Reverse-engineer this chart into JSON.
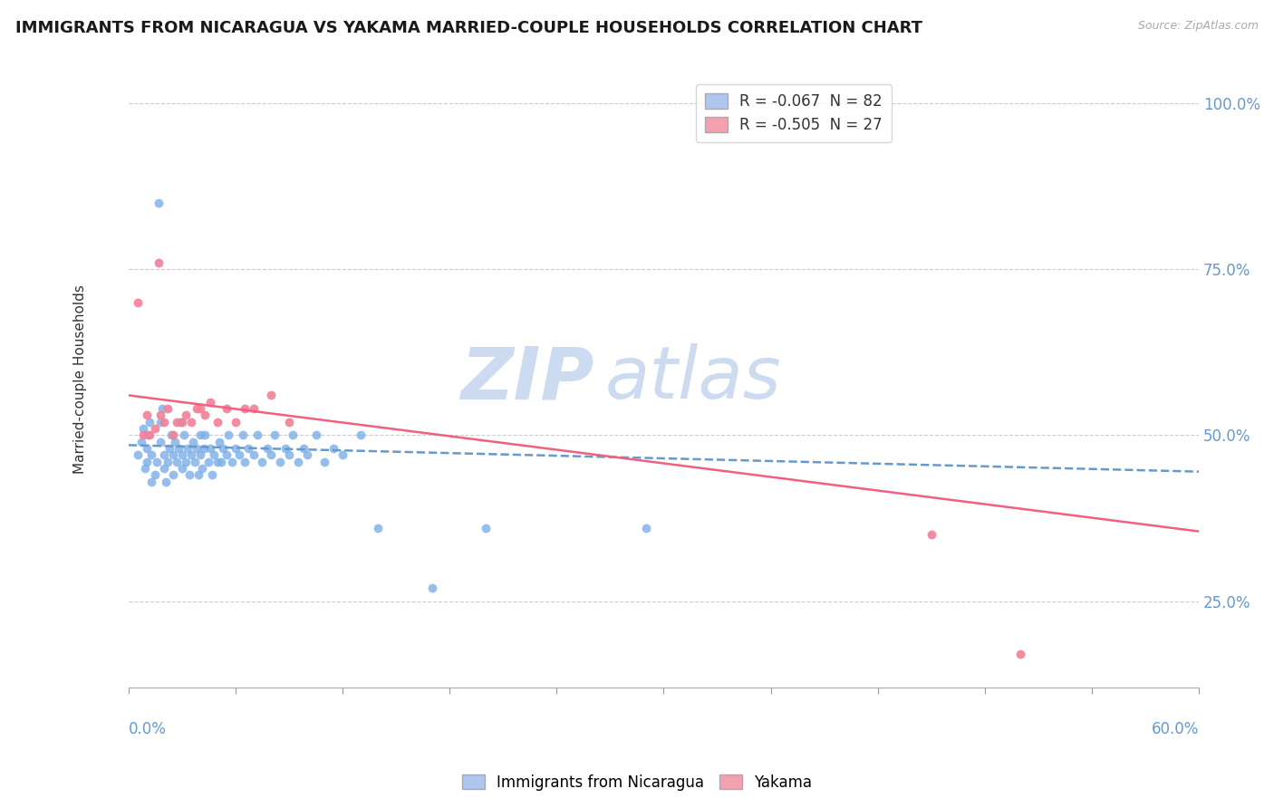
{
  "title": "IMMIGRANTS FROM NICARAGUA VS YAKAMA MARRIED-COUPLE HOUSEHOLDS CORRELATION CHART",
  "source": "Source: ZipAtlas.com",
  "ylabel": "Married-couple Households",
  "yticks_labels": [
    "25.0%",
    "50.0%",
    "75.0%",
    "100.0%"
  ],
  "ytick_vals": [
    0.25,
    0.5,
    0.75,
    1.0
  ],
  "xlim": [
    0.0,
    0.6
  ],
  "ylim": [
    0.12,
    1.05
  ],
  "legend1_label": "R = -0.067  N = 82",
  "legend2_label": "R = -0.505  N = 27",
  "legend1_color": "#aec6f0",
  "legend2_color": "#f4a0b0",
  "scatter1_color": "#7baee8",
  "scatter2_color": "#f28096",
  "watermark_zip_color": "#b8ccec",
  "watermark_atlas_color": "#b8ccec",
  "trend1_color": "#6699cc",
  "trend2_color": "#f06080",
  "grid_color": "#cccccc",
  "tick_color": "#6699cc",
  "title_color": "#1a1a1a",
  "source_color": "#aaaaaa",
  "s1x": [
    0.005,
    0.007,
    0.008,
    0.009,
    0.01,
    0.01,
    0.011,
    0.012,
    0.013,
    0.013,
    0.015,
    0.016,
    0.017,
    0.018,
    0.018,
    0.019,
    0.02,
    0.02,
    0.021,
    0.022,
    0.023,
    0.024,
    0.025,
    0.025,
    0.026,
    0.027,
    0.028,
    0.029,
    0.03,
    0.03,
    0.031,
    0.032,
    0.033,
    0.034,
    0.035,
    0.036,
    0.037,
    0.038,
    0.039,
    0.04,
    0.04,
    0.041,
    0.042,
    0.043,
    0.045,
    0.046,
    0.047,
    0.048,
    0.05,
    0.051,
    0.052,
    0.053,
    0.055,
    0.056,
    0.058,
    0.06,
    0.062,
    0.064,
    0.065,
    0.067,
    0.07,
    0.072,
    0.075,
    0.078,
    0.08,
    0.082,
    0.085,
    0.088,
    0.09,
    0.092,
    0.095,
    0.098,
    0.1,
    0.105,
    0.11,
    0.115,
    0.12,
    0.13,
    0.14,
    0.17,
    0.2,
    0.29
  ],
  "s1y": [
    0.47,
    0.49,
    0.51,
    0.45,
    0.46,
    0.48,
    0.5,
    0.52,
    0.43,
    0.47,
    0.44,
    0.46,
    0.85,
    0.49,
    0.52,
    0.54,
    0.45,
    0.47,
    0.43,
    0.46,
    0.48,
    0.5,
    0.44,
    0.47,
    0.49,
    0.46,
    0.48,
    0.52,
    0.45,
    0.47,
    0.5,
    0.46,
    0.48,
    0.44,
    0.47,
    0.49,
    0.46,
    0.48,
    0.44,
    0.47,
    0.5,
    0.45,
    0.48,
    0.5,
    0.46,
    0.48,
    0.44,
    0.47,
    0.46,
    0.49,
    0.46,
    0.48,
    0.47,
    0.5,
    0.46,
    0.48,
    0.47,
    0.5,
    0.46,
    0.48,
    0.47,
    0.5,
    0.46,
    0.48,
    0.47,
    0.5,
    0.46,
    0.48,
    0.47,
    0.5,
    0.46,
    0.48,
    0.47,
    0.5,
    0.46,
    0.48,
    0.47,
    0.5,
    0.36,
    0.27,
    0.36,
    0.36
  ],
  "s2x": [
    0.005,
    0.008,
    0.01,
    0.012,
    0.015,
    0.017,
    0.018,
    0.02,
    0.022,
    0.025,
    0.027,
    0.03,
    0.032,
    0.035,
    0.038,
    0.04,
    0.043,
    0.046,
    0.05,
    0.055,
    0.06,
    0.065,
    0.07,
    0.08,
    0.09,
    0.45,
    0.5
  ],
  "s2y": [
    0.7,
    0.5,
    0.53,
    0.5,
    0.51,
    0.76,
    0.53,
    0.52,
    0.54,
    0.5,
    0.52,
    0.52,
    0.53,
    0.52,
    0.54,
    0.54,
    0.53,
    0.55,
    0.52,
    0.54,
    0.52,
    0.54,
    0.54,
    0.56,
    0.52,
    0.35,
    0.17
  ],
  "trend1_x": [
    0.0,
    0.6
  ],
  "trend1_y": [
    0.485,
    0.445
  ],
  "trend2_x": [
    0.0,
    0.6
  ],
  "trend2_y": [
    0.56,
    0.355
  ]
}
